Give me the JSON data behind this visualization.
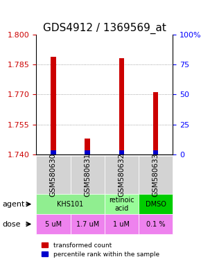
{
  "title": "GDS4912 / 1369569_at",
  "samples": [
    "GSM580630",
    "GSM580631",
    "GSM580632",
    "GSM580633"
  ],
  "red_values": [
    1.789,
    1.748,
    1.788,
    1.771
  ],
  "blue_values": [
    1.741,
    1.741,
    1.741,
    1.741
  ],
  "ylim_left": [
    1.74,
    1.8
  ],
  "yticks_left": [
    1.74,
    1.755,
    1.77,
    1.785,
    1.8
  ],
  "yticks_right": [
    0,
    25,
    50,
    75,
    100
  ],
  "agents": [
    {
      "label": "KHS101",
      "span": [
        0,
        2
      ],
      "color": "#90ee90"
    },
    {
      "label": "retinoic\nacid",
      "span": [
        2,
        3
      ],
      "color": "#98fb98"
    },
    {
      "label": "DMSO",
      "span": [
        3,
        4
      ],
      "color": "#00cc00"
    }
  ],
  "doses": [
    {
      "label": "5 uM",
      "span": [
        0,
        1
      ],
      "color": "#ee82ee"
    },
    {
      "label": "1.7 uM",
      "span": [
        1,
        2
      ],
      "color": "#ee82ee"
    },
    {
      "label": "1 uM",
      "span": [
        2,
        3
      ],
      "color": "#ee82ee"
    },
    {
      "label": "0.1 %",
      "span": [
        3,
        4
      ],
      "color": "#ee82ee"
    }
  ],
  "bar_width": 0.15,
  "left_color": "#cc0000",
  "right_color": "#0000cc",
  "title_fontsize": 11,
  "tick_fontsize": 8,
  "label_fontsize": 8,
  "sample_label_fontsize": 7.5,
  "background_color": "#ffffff",
  "plot_bg": "#ffffff",
  "grid_color": "#888888"
}
